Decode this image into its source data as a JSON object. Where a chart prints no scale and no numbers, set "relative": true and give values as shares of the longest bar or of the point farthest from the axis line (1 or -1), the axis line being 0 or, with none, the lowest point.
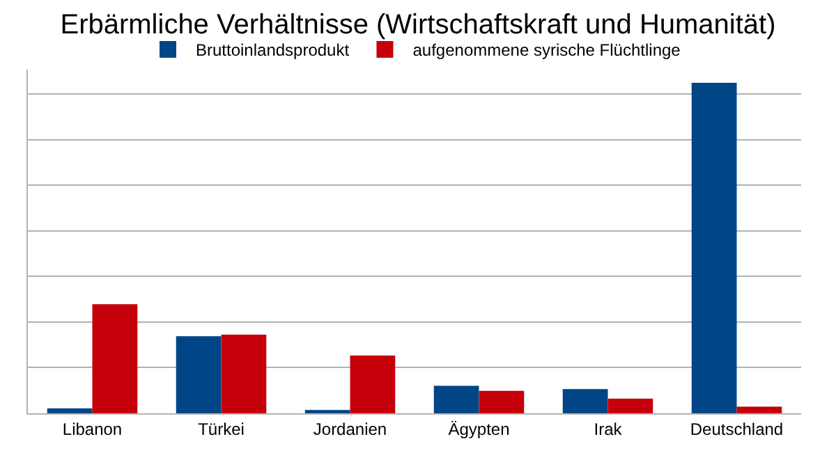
{
  "chart_data": {
    "type": "bar",
    "title": "Erbärmliche Verhältnisse (Wirtschaftskraft und Humanität)",
    "categories": [
      "Libanon",
      "Türkei",
      "Jordanien",
      "Ägypten",
      "Irak",
      "Deutschland"
    ],
    "relative": true,
    "grid": "y",
    "legend": "top",
    "series": [
      {
        "name": "Bruttoinlandsprodukt",
        "color": "#004586",
        "values": [
          0.015,
          0.233,
          0.01,
          0.083,
          0.073,
          1
        ]
      },
      {
        "name": "aufgenommene syrische Flüchtlinge",
        "color": "#c5000b",
        "values": [
          0.33,
          0.238,
          0.175,
          0.068,
          0.044,
          0.02
        ]
      }
    ]
  }
}
